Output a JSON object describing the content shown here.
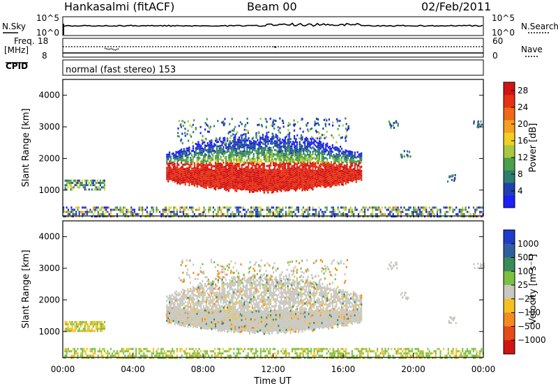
{
  "header": {
    "station": "Hankasalmi (fitACF)",
    "beam": "Beam 00",
    "date": "02/Feb/2011"
  },
  "top_panels": {
    "nsky": {
      "label": "N.Sky",
      "ticks": [
        "10^5",
        "10^0"
      ]
    },
    "nsearch": {
      "label": "N.Search",
      "ticks": [
        "10^5",
        "10^0"
      ]
    },
    "freq": {
      "label_line1": "Freq.",
      "label_line2": "[MHz]",
      "ticks": [
        "18",
        "8"
      ]
    },
    "nave": {
      "label": "Nave",
      "ticks": [
        "60",
        "0"
      ]
    },
    "cpid": {
      "label": "CPID",
      "mode_text": "normal (fast stereo) 153"
    }
  },
  "chart_data": [
    {
      "type": "heatmap",
      "name": "power",
      "ylabel": "Slant Range [km]",
      "xlabel": "",
      "x_range_hours": [
        0,
        24
      ],
      "ylim": [
        180,
        4500
      ],
      "ytick_labels": [
        "1000",
        "2000",
        "3000",
        "4000"
      ],
      "ytick_values": [
        1000,
        2000,
        3000,
        4000
      ],
      "colorbar": {
        "label": "Power [dB]",
        "tick_labels": [
          "4",
          "8",
          "12",
          "16",
          "20",
          "24",
          "28"
        ],
        "tick_values": [
          4,
          8,
          12,
          16,
          20,
          24,
          28
        ],
        "range": [
          0,
          30
        ],
        "colors": [
          "#1e1eff",
          "#2040b0",
          "#2e7d6e",
          "#4aa04a",
          "#a8c840",
          "#f0d020",
          "#f5a020",
          "#f06818",
          "#e63214",
          "#d21414"
        ]
      }
    },
    {
      "type": "heatmap",
      "name": "velocity",
      "ylabel": "Slant Range [km]",
      "xlabel": "Time UT",
      "x_range_hours": [
        0,
        24
      ],
      "ylim": [
        180,
        4500
      ],
      "ytick_labels": [
        "1000",
        "2000",
        "3000",
        "4000"
      ],
      "ytick_values": [
        1000,
        2000,
        3000,
        4000
      ],
      "xtick_labels": [
        "00:00",
        "04:00",
        "08:00",
        "12:00",
        "16:00",
        "20:00",
        "00:00"
      ],
      "xtick_values": [
        0,
        4,
        8,
        12,
        16,
        20,
        24
      ],
      "colorbar": {
        "label": "Velocity [m s⁻¹]",
        "tick_labels": [
          "1000",
          "500",
          "100",
          "25",
          "−25",
          "−100",
          "−500",
          "−1000"
        ],
        "colors": [
          "#1e3ccc",
          "#2f5fa0",
          "#3a8a5a",
          "#7cc040",
          "#c8c8c0",
          "#f5c020",
          "#f58a20",
          "#e84a18",
          "#d21414"
        ]
      }
    }
  ]
}
